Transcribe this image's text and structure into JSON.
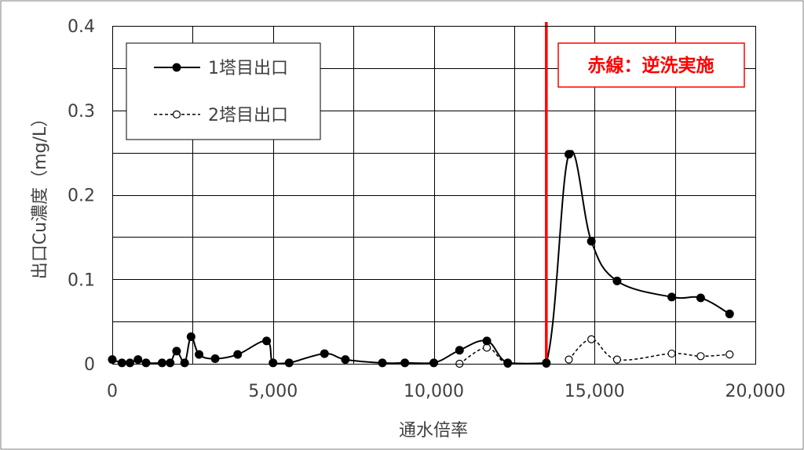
{
  "chart_data": {
    "type": "line",
    "xlabel": "通水倍率",
    "ylabel": "出口Cu濃度（mg/L）",
    "xlim": [
      0,
      20000
    ],
    "ylim": [
      0,
      0.4
    ],
    "x_ticks": [
      0,
      5000,
      10000,
      15000,
      20000
    ],
    "x_tick_labels": [
      "0",
      "5,000",
      "10,000",
      "15,000",
      "20,000"
    ],
    "x_grid_step": 2500,
    "y_ticks": [
      0,
      0.1,
      0.2,
      0.3,
      0.4
    ],
    "y_tick_labels": [
      "0",
      "0.1",
      "0.2",
      "0.3",
      "0.4"
    ],
    "y_grid_step": 0.05,
    "grid": true,
    "legend_position": "top-left",
    "series": [
      {
        "name": "1塔目出口",
        "style": "solid",
        "marker": "filled-circle",
        "color": "#000000",
        "segments": [
          [
            [
              0,
              0.005
            ],
            [
              300,
              0.001
            ],
            [
              550,
              0.001
            ],
            [
              800,
              0.005
            ],
            [
              1050,
              0.001
            ],
            [
              1550,
              0.001
            ],
            [
              1800,
              0.001
            ],
            [
              2000,
              0.015
            ],
            [
              2250,
              0.001
            ],
            [
              2450,
              0.032
            ],
            [
              2700,
              0.011
            ],
            [
              3200,
              0.006
            ],
            [
              3900,
              0.011
            ],
            [
              4800,
              0.027
            ],
            [
              5000,
              0.001
            ],
            [
              5500,
              0.001
            ],
            [
              6600,
              0.012
            ],
            [
              7250,
              0.005
            ],
            [
              8400,
              0.001
            ],
            [
              9100,
              0.001
            ],
            [
              10000,
              0.001
            ],
            [
              10800,
              0.016
            ],
            [
              11650,
              0.027
            ],
            [
              12300,
              0.001
            ],
            [
              13500,
              0.001
            ],
            [
              14200,
              0.248
            ],
            [
              14900,
              0.145
            ],
            [
              15700,
              0.098
            ],
            [
              17400,
              0.079
            ],
            [
              18300,
              0.078
            ],
            [
              19200,
              0.059
            ]
          ]
        ]
      },
      {
        "name": "2塔目出口",
        "style": "dashed",
        "marker": "open-circle",
        "color": "#000000",
        "segments": [
          [
            [
              10800,
              0.0
            ],
            [
              11650,
              0.019
            ],
            [
              12300,
              0.0
            ],
            [
              13500,
              0.0
            ]
          ],
          [
            [
              14200,
              0.005
            ],
            [
              14900,
              0.029
            ],
            [
              15700,
              0.005
            ],
            [
              17400,
              0.012
            ],
            [
              18300,
              0.009
            ],
            [
              19200,
              0.011
            ]
          ]
        ]
      }
    ],
    "annotation": {
      "x": 13500,
      "text": "赤線：逆洗実施",
      "color": "#ff0000"
    }
  }
}
